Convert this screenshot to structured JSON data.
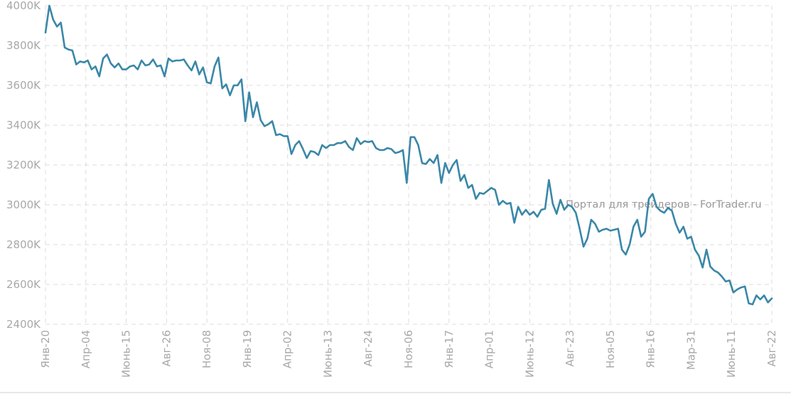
{
  "chart_data": {
    "type": "line",
    "title": "",
    "xlabel": "",
    "ylabel": "",
    "ylim": [
      2400,
      4000
    ],
    "y_ticks": [
      2400,
      2600,
      2800,
      3000,
      3200,
      3400,
      3600,
      3800,
      4000
    ],
    "y_tick_labels": [
      "2400K",
      "2600K",
      "2800K",
      "3000K",
      "3200K",
      "3400K",
      "3600K",
      "3800K",
      "4000K"
    ],
    "x_tick_labels": [
      "Янв-20",
      "Апр-04",
      "Июнь-15",
      "Авг-26",
      "Ноя-08",
      "Янв-19",
      "Апр-02",
      "Июнь-13",
      "Авг-24",
      "Ноя-06",
      "Янв-17",
      "Апр-01",
      "Июнь-12",
      "Авг-23",
      "Ноя-05",
      "Янв-16",
      "Мар-31",
      "Июнь-11",
      "Авг-22"
    ],
    "x_label_rotation": -90,
    "grid": true,
    "line_color": "#3a87a8",
    "series": [
      {
        "values": [
          3865,
          4000,
          3930,
          3895,
          3915,
          3790,
          3780,
          3775,
          3705,
          3720,
          3715,
          3725,
          3680,
          3695,
          3645,
          3735,
          3755,
          3710,
          3690,
          3710,
          3680,
          3680,
          3695,
          3700,
          3680,
          3725,
          3700,
          3705,
          3730,
          3695,
          3700,
          3645,
          3735,
          3720,
          3725,
          3725,
          3730,
          3700,
          3675,
          3720,
          3655,
          3690,
          3615,
          3610,
          3695,
          3740,
          3585,
          3605,
          3550,
          3600,
          3600,
          3630,
          3420,
          3565,
          3440,
          3515,
          3425,
          3395,
          3405,
          3420,
          3350,
          3355,
          3345,
          3345,
          3255,
          3300,
          3320,
          3280,
          3235,
          3270,
          3265,
          3250,
          3300,
          3285,
          3300,
          3300,
          3310,
          3310,
          3320,
          3290,
          3275,
          3335,
          3305,
          3320,
          3315,
          3320,
          3285,
          3275,
          3275,
          3285,
          3280,
          3260,
          3265,
          3275,
          3110,
          3340,
          3340,
          3300,
          3210,
          3205,
          3230,
          3210,
          3250,
          3110,
          3210,
          3160,
          3200,
          3225,
          3120,
          3150,
          3085,
          3100,
          3030,
          3060,
          3055,
          3070,
          3085,
          3075,
          3000,
          3020,
          3005,
          3010,
          2910,
          2990,
          2950,
          2975,
          2950,
          2965,
          2940,
          2975,
          2980,
          3125,
          3005,
          2955,
          3025,
          2975,
          3000,
          2990,
          2960,
          2880,
          2790,
          2830,
          2925,
          2905,
          2865,
          2875,
          2880,
          2870,
          2875,
          2880,
          2775,
          2750,
          2800,
          2890,
          2925,
          2840,
          2865,
          3030,
          3055,
          2990,
          2970,
          2960,
          2985,
          2970,
          2905,
          2860,
          2890,
          2830,
          2840,
          2775,
          2745,
          2685,
          2775,
          2690,
          2670,
          2660,
          2640,
          2615,
          2620,
          2560,
          2575,
          2585,
          2590,
          2505,
          2500,
          2545,
          2525,
          2545,
          2510,
          2530
        ]
      }
    ]
  },
  "watermark": "Портал для трейдеров - ForTrader.ru"
}
